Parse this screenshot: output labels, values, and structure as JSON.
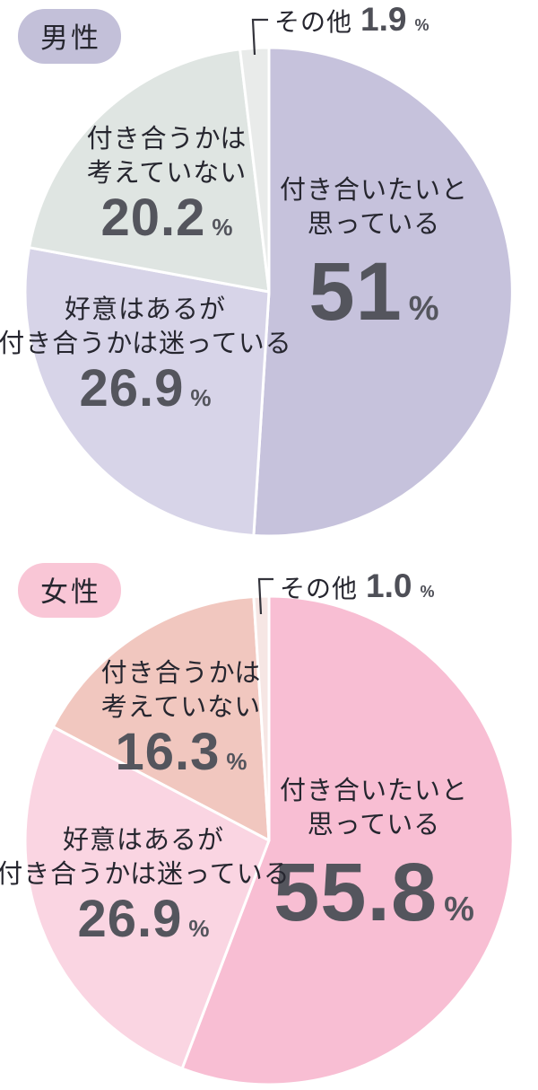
{
  "chart_data": [
    {
      "type": "pie",
      "title": "男性",
      "labels": [
        "付き合いたいと思っている",
        "好意はあるが付き合うかは迷っている",
        "付き合うかは考えていない",
        "その他"
      ],
      "values": [
        51,
        26.9,
        20.2,
        1.9
      ],
      "value_suffix": "%",
      "colors": [
        "#c6c2dc",
        "#d7d4e8",
        "#dfe5e2",
        "#e9ebea"
      ],
      "start_angle_deg": 0,
      "direction": "clockwise",
      "legend": "none",
      "slice_border_color": "#ffffff"
    },
    {
      "type": "pie",
      "title": "女性",
      "labels": [
        "付き合いたいと思っている",
        "好意はあるが付き合うかは迷っている",
        "付き合うかは考えていない",
        "その他"
      ],
      "values": [
        55.8,
        26.9,
        16.3,
        1.0
      ],
      "value_suffix": "%",
      "colors": [
        "#f8bed3",
        "#fad5e2",
        "#f1c7bf",
        "#f6e6e4"
      ],
      "start_angle_deg": 0,
      "direction": "clockwise",
      "legend": "none",
      "slice_border_color": "#ffffff"
    }
  ],
  "charts": [
    {
      "badge": "男性",
      "badge_bg": "#c3c0d9",
      "callout": {
        "label": "その他",
        "value": "1.9",
        "unit": "%"
      },
      "main": {
        "line1": "付き合いたいと",
        "line2": "思っている",
        "value": "51",
        "unit": "%"
      },
      "second": {
        "line1": "好意はあるが",
        "line2": "付き合うかは迷っている",
        "value": "26.9",
        "unit": "%"
      },
      "third": {
        "line1": "付き合うかは",
        "line2": "考えていない",
        "value": "20.2",
        "unit": "%"
      }
    },
    {
      "badge": "女性",
      "badge_bg": "#f9c6d6",
      "callout": {
        "label": "その他",
        "value": "1.0",
        "unit": "%"
      },
      "main": {
        "line1": "付き合いたいと",
        "line2": "思っている",
        "value": "55.8",
        "unit": "%"
      },
      "second": {
        "line1": "好意はあるが",
        "line2": "付き合うかは迷っている",
        "value": "26.9",
        "unit": "%"
      },
      "third": {
        "line1": "付き合うかは",
        "line2": "考えていない",
        "value": "16.3",
        "unit": "%"
      }
    }
  ]
}
